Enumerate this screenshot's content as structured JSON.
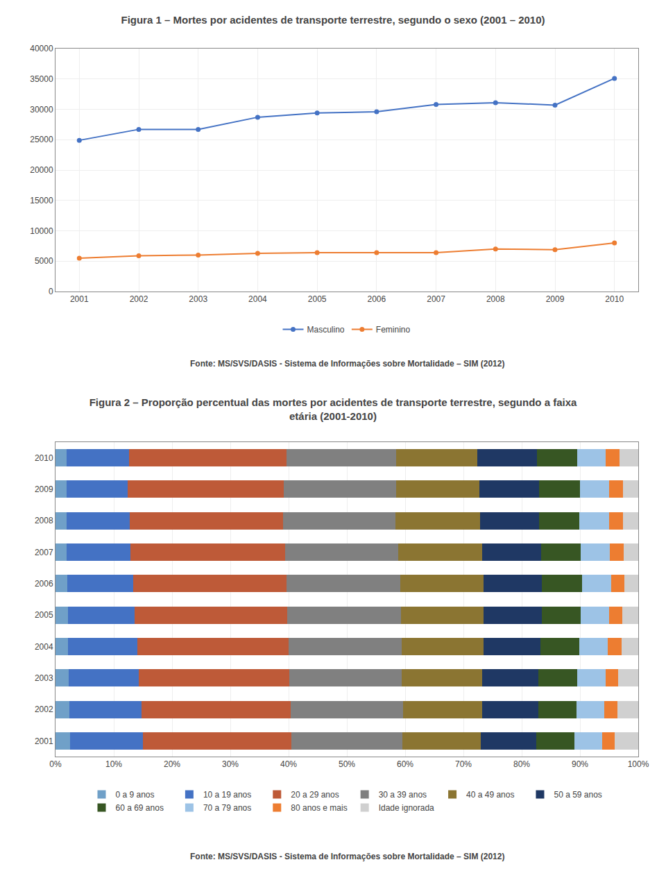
{
  "chart_data": [
    {
      "type": "line",
      "title": "Figura 1 – Mortes por acidentes de transporte terrestre, segundo o sexo (2001 – 2010)",
      "x": [
        2001,
        2002,
        2003,
        2004,
        2005,
        2006,
        2007,
        2008,
        2009,
        2010
      ],
      "series": [
        {
          "name": "Masculino",
          "color": "#4472c4",
          "marker": "o",
          "values": [
            24900,
            26700,
            26700,
            28700,
            29400,
            29600,
            30800,
            31100,
            30700,
            35100
          ]
        },
        {
          "name": "Feminino",
          "color": "#ed7d31",
          "marker": "o",
          "values": [
            5500,
            5900,
            6000,
            6300,
            6400,
            6400,
            6400,
            7000,
            6900,
            8000
          ]
        }
      ],
      "xlim": [
        2000.6,
        2010.4
      ],
      "xticks": [
        2001,
        2002,
        2003,
        2004,
        2005,
        2006,
        2007,
        2008,
        2009,
        2010
      ],
      "ylim": [
        0,
        40000
      ],
      "yticks": [
        0,
        5000,
        10000,
        15000,
        20000,
        25000,
        30000,
        35000,
        40000
      ],
      "grid": true,
      "legend": "bottom",
      "annotations": [
        {
          "text": "Fonte: MS/SVS/DASIS - Sistema de Informações sobre Mortalidade – SIM (2012)"
        }
      ]
    },
    {
      "type": "bar",
      "orientation": "horizontal",
      "stacked": true,
      "title": "Figura 2 – Proporção percentual das mortes por acidentes de transporte terrestre, segundo a faixa\netária (2001-2010)",
      "categories": [
        "2001",
        "2002",
        "2003",
        "2004",
        "2005",
        "2006",
        "2007",
        "2008",
        "2009",
        "2010"
      ],
      "series": [
        {
          "name": "0 a 9 anos",
          "color": "#70a0c8",
          "values": [
            2.5,
            2.4,
            2.3,
            2.2,
            2.1,
            2.0,
            1.9,
            1.9,
            1.9,
            1.9
          ]
        },
        {
          "name": "10 a 19 anos",
          "color": "#4472c4",
          "values": [
            12.5,
            12.4,
            12.0,
            11.8,
            11.5,
            11.3,
            11.0,
            10.8,
            10.5,
            10.7
          ]
        },
        {
          "name": "20 a 29 anos",
          "color": "#be5a38",
          "values": [
            25.5,
            25.6,
            25.8,
            26.0,
            26.2,
            26.4,
            26.5,
            26.3,
            26.8,
            27.0
          ]
        },
        {
          "name": "30 a 39 anos",
          "color": "#808080",
          "values": [
            19.0,
            19.2,
            19.3,
            19.4,
            19.5,
            19.5,
            19.4,
            19.3,
            19.2,
            18.8
          ]
        },
        {
          "name": "40 a 49 anos",
          "color": "#8b7532",
          "values": [
            13.5,
            13.6,
            13.8,
            14.0,
            14.2,
            14.3,
            14.4,
            14.5,
            14.3,
            14.0
          ]
        },
        {
          "name": "50 a 59 anos",
          "color": "#1f3864",
          "values": [
            9.5,
            9.6,
            9.7,
            9.8,
            9.9,
            10.0,
            10.1,
            10.2,
            10.3,
            10.2
          ]
        },
        {
          "name": "60 a 69 anos",
          "color": "#375623",
          "values": [
            6.5,
            6.6,
            6.6,
            6.7,
            6.7,
            6.8,
            6.8,
            6.9,
            7.0,
            6.9
          ]
        },
        {
          "name": "70 a 79 anos",
          "color": "#9dc3e6",
          "values": [
            4.8,
            4.8,
            4.9,
            4.9,
            4.9,
            5.0,
            5.0,
            5.1,
            5.0,
            4.9
          ]
        },
        {
          "name": "80 anos e mais",
          "color": "#ed7d31",
          "values": [
            2.2,
            2.2,
            2.2,
            2.3,
            2.3,
            2.3,
            2.4,
            2.4,
            2.4,
            2.4
          ]
        },
        {
          "name": "Idade ignorada",
          "color": "#d0d0d0",
          "values": [
            4.0,
            3.6,
            3.4,
            2.9,
            2.7,
            2.4,
            2.5,
            2.6,
            2.6,
            3.2
          ]
        }
      ],
      "xlim": [
        0,
        100
      ],
      "xticks": [
        {
          "value": 0,
          "label": "0%"
        },
        {
          "value": 10,
          "label": "10%"
        },
        {
          "value": 20,
          "label": "20%"
        },
        {
          "value": 30,
          "label": "30%"
        },
        {
          "value": 40,
          "label": "40%"
        },
        {
          "value": 50,
          "label": "50%"
        },
        {
          "value": 60,
          "label": "60%"
        },
        {
          "value": 70,
          "label": "70%"
        },
        {
          "value": 80,
          "label": "80%"
        },
        {
          "value": 90,
          "label": "90%"
        },
        {
          "value": 100,
          "label": "100%"
        }
      ],
      "grid": "x",
      "legend": "bottom",
      "annotations": [
        {
          "text": "Fonte: MS/SVS/DASIS - Sistema de Informações sobre Mortalidade – SIM (2012)"
        }
      ]
    }
  ]
}
